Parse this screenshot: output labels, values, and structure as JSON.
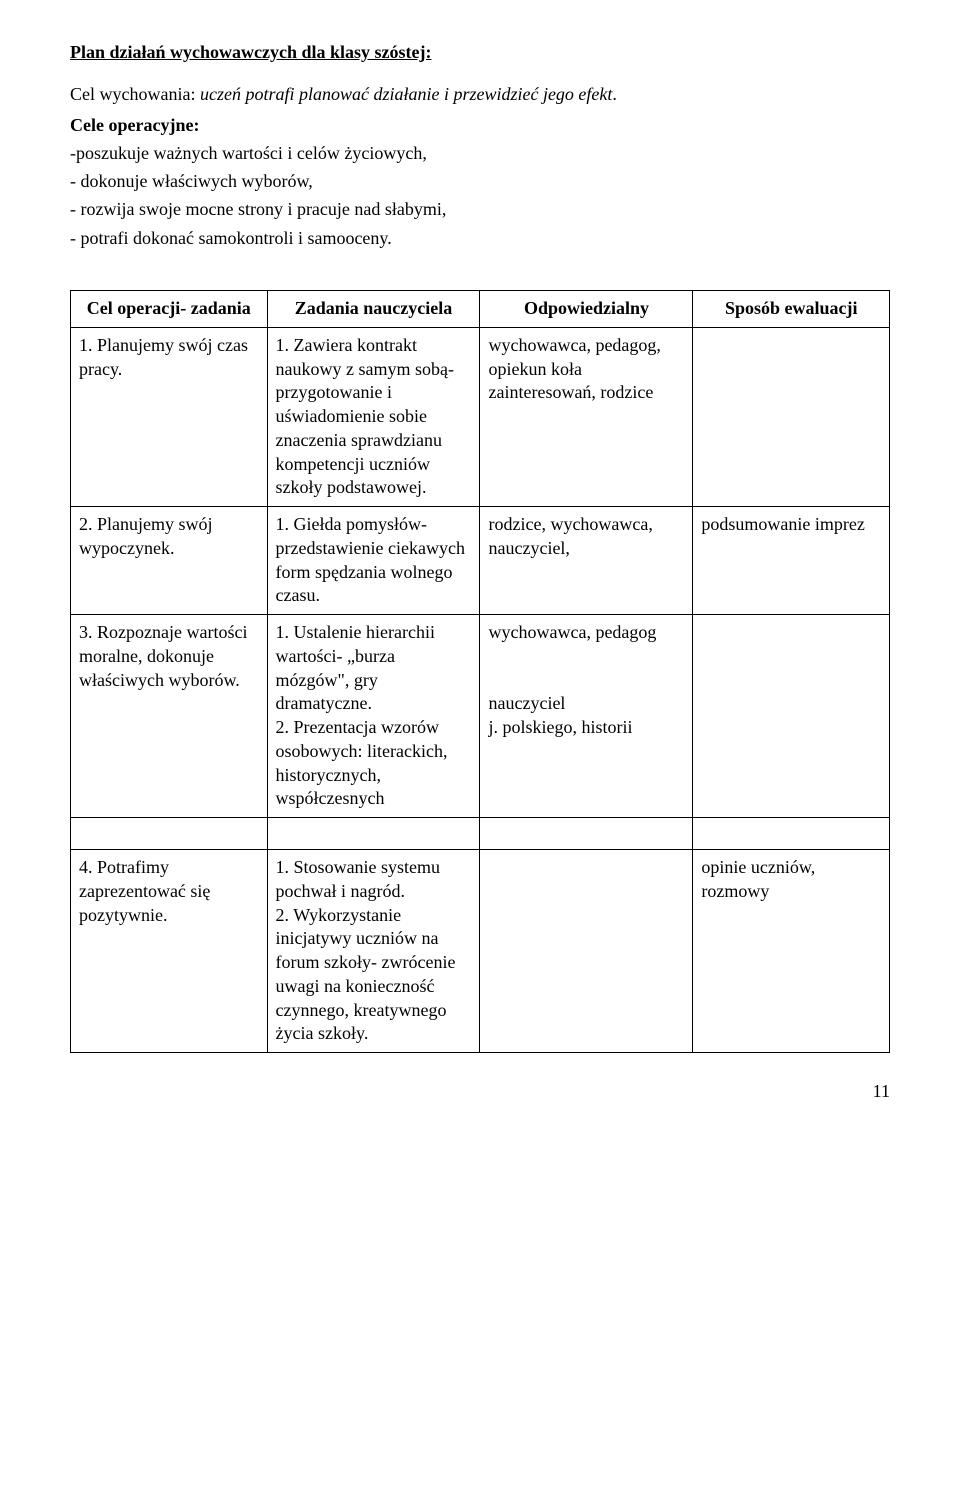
{
  "header": {
    "title": "Plan działań wychowawczych dla klasy szóstej:",
    "cel_prefix": "Cel wychowania: ",
    "cel_italic": "uczeń potrafi planować działanie i przewidzieć jego efekt",
    "cel_suffix": ".",
    "cele_line": "Cele operacyjne:",
    "items": [
      "-poszukuje ważnych wartości i celów życiowych,",
      "- dokonuje właściwych wyborów,",
      "- rozwija swoje mocne strony i pracuje nad słabymi,",
      "- potrafi dokonać samokontroli i samooceny."
    ]
  },
  "table": {
    "headers": [
      "Cel operacji- zadania",
      "Zadania nauczyciela",
      "Odpowiedzialny",
      "Sposób ewaluacji"
    ],
    "rows": [
      {
        "c0": "1. Planujemy swój czas pracy.",
        "c1": "1. Zawiera kontrakt naukowy z samym sobą- przygotowanie i uświadomienie sobie znaczenia sprawdzianu kompetencji uczniów szkoły podstawowej.",
        "c2": "wychowawca, pedagog, opiekun koła zainteresowań, rodzice",
        "c3": ""
      },
      {
        "c0": "2. Planujemy swój wypoczynek.",
        "c1": "1. Giełda pomysłów- przedstawienie ciekawych form spędzania wolnego czasu.",
        "c2": "rodzice, wychowawca, nauczyciel,",
        "c3": "podsumowanie imprez"
      },
      {
        "c0": "3. Rozpoznaje wartości moralne, dokonuje właściwych wyborów.",
        "c1": "1. Ustalenie hierarchii wartości- „burza mózgów\", gry dramatyczne.\n2. Prezentacja wzorów osobowych: literackich, historycznych, współczesnych",
        "c2": "wychowawca, pedagog\n\n\nnauczyciel\nj. polskiego, historii",
        "c3": ""
      },
      {
        "c0": "4. Potrafimy zaprezentować się pozytywnie.",
        "c1": "1. Stosowanie systemu pochwał  i nagród.\n2. Wykorzystanie inicjatywy uczniów na forum szkoły- zwrócenie uwagi na konieczność czynnego, kreatywnego życia szkoły.",
        "c2": "",
        "c3": "opinie uczniów, rozmowy"
      }
    ]
  },
  "page_number": "11"
}
